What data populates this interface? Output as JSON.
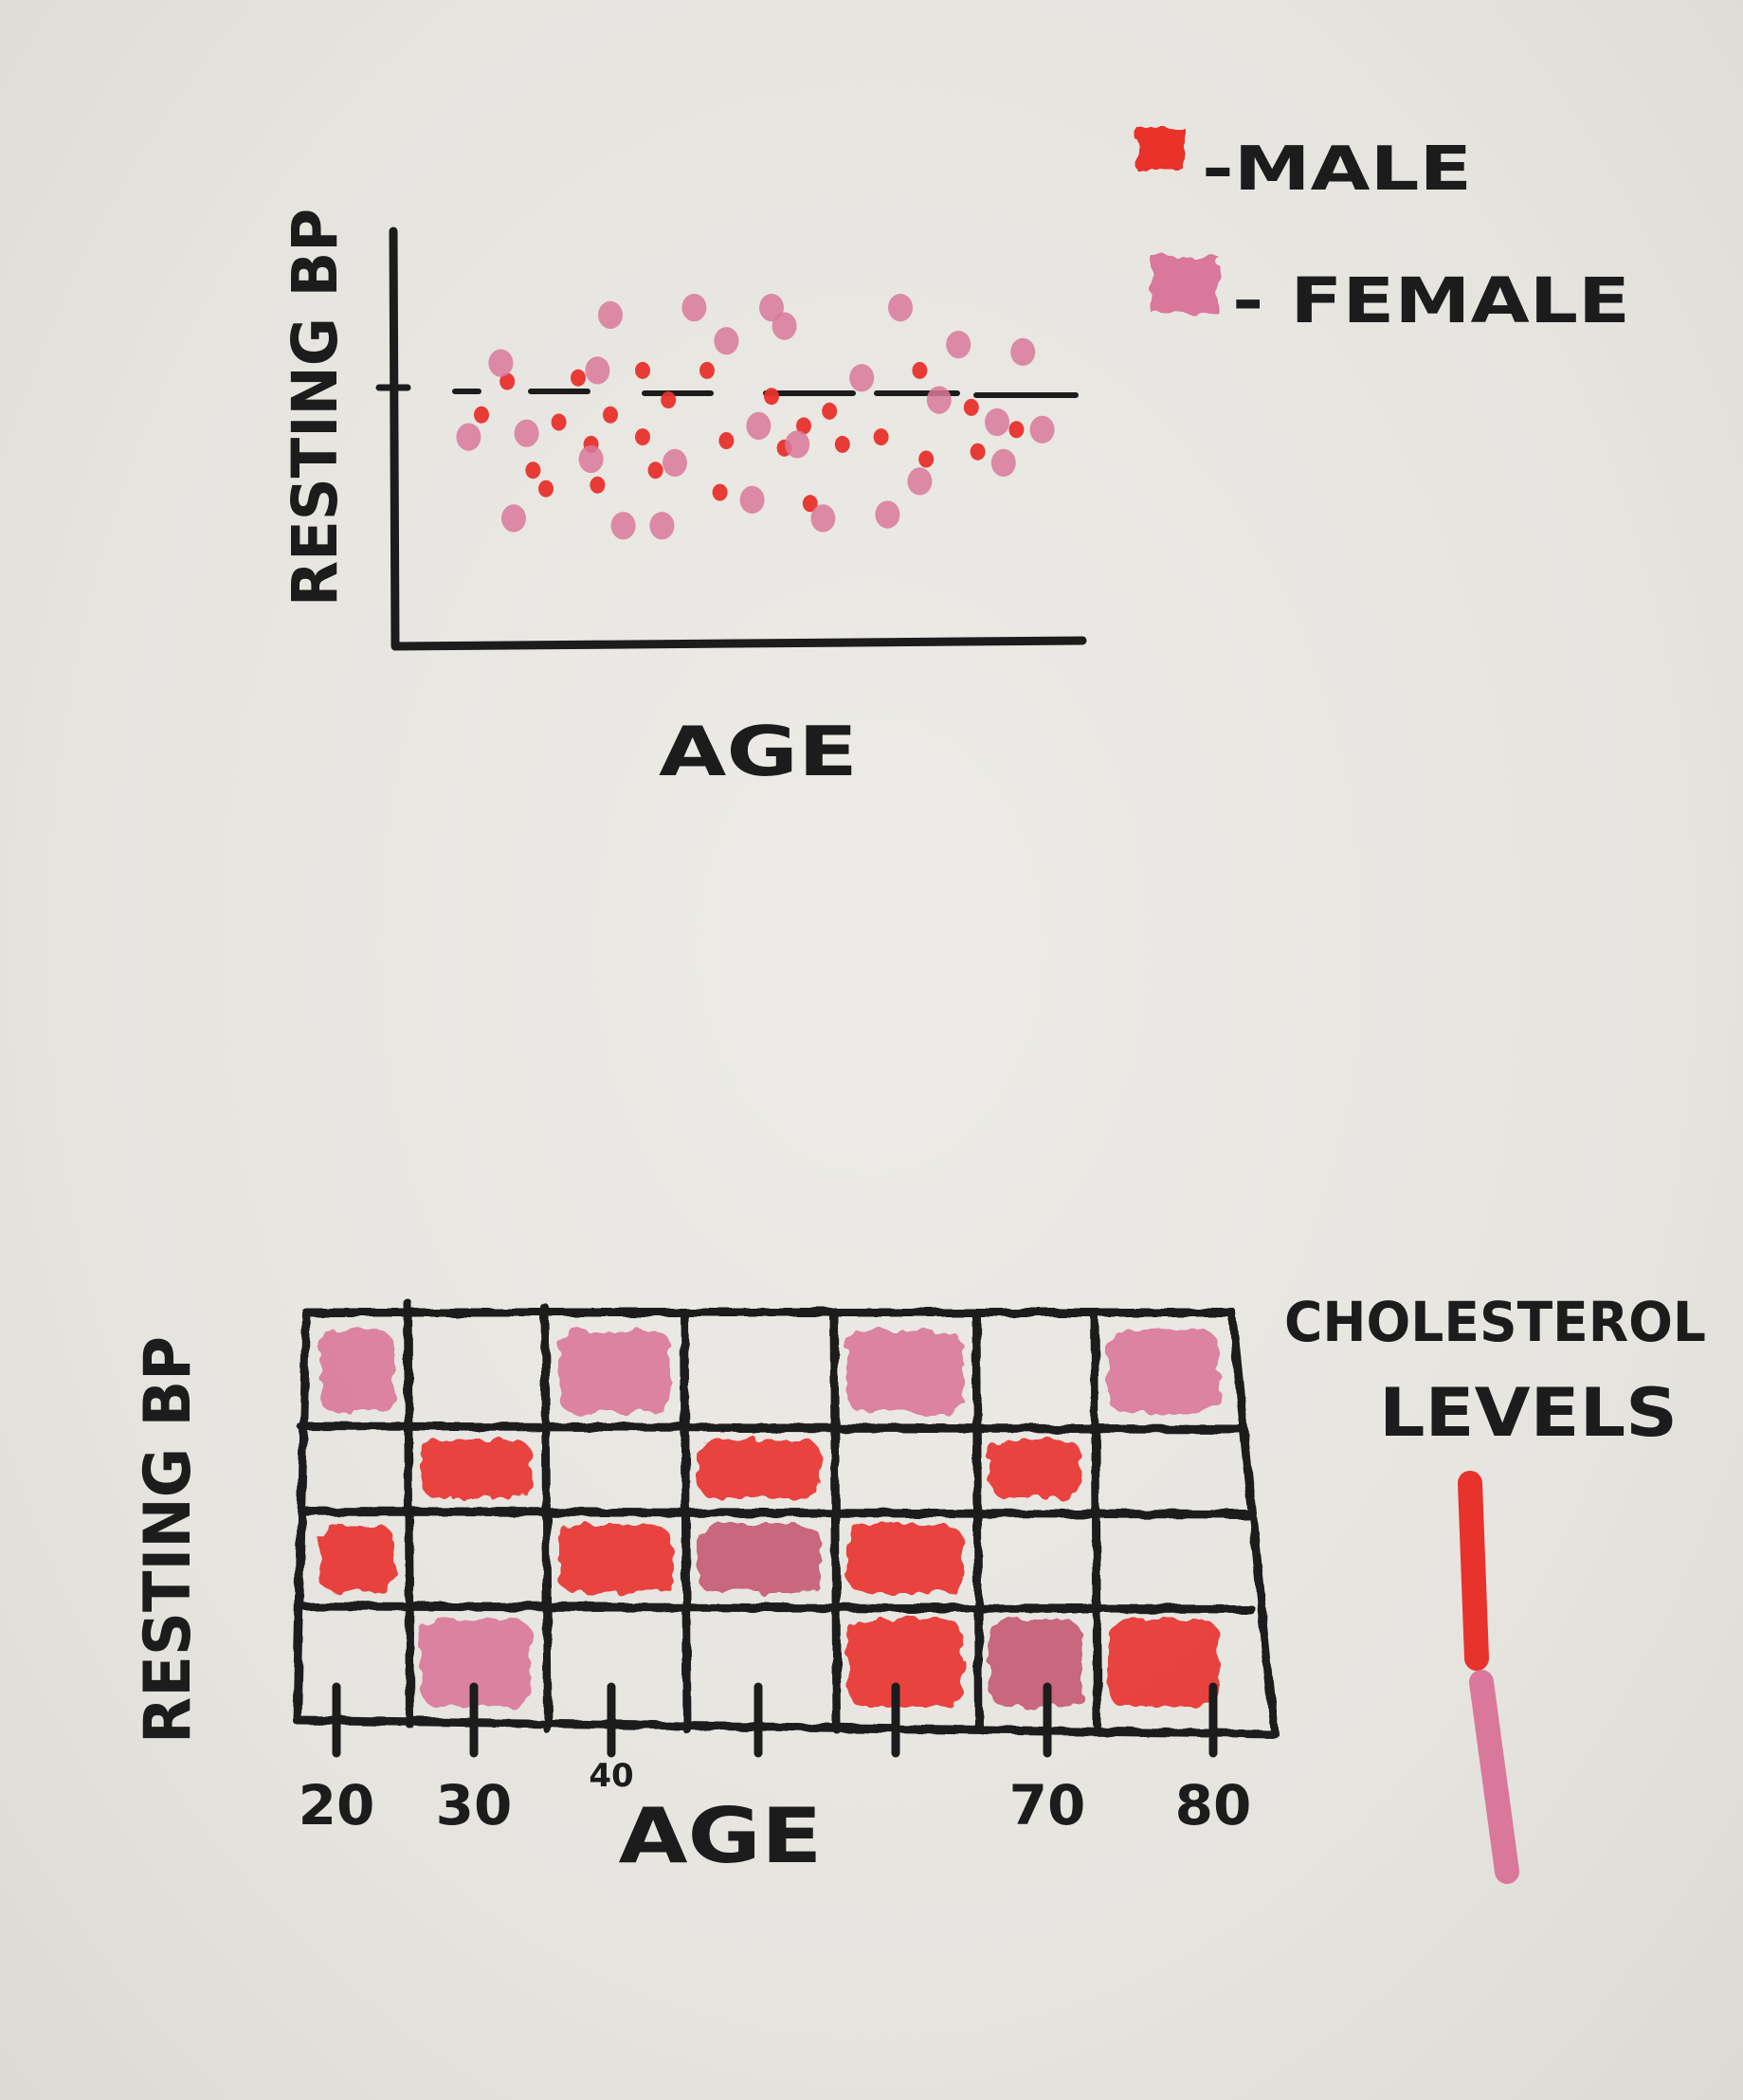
{
  "colors": {
    "ink": "#1c1c1c",
    "male": "#e8322c",
    "female": "#d9789a",
    "paper": "#e9e7e2"
  },
  "chart_data": [
    {
      "type": "scatter",
      "title": "",
      "xlabel": "AGE",
      "ylabel": "RESTING BP",
      "legend": {
        "placement": "top-right",
        "entries": [
          {
            "name": "-MALE",
            "color": "#e8322c"
          },
          {
            "name": "- FEMALE",
            "color": "#d9789a"
          }
        ]
      },
      "reference_line": {
        "y": 0.56,
        "style": "dashed"
      },
      "grid": false,
      "xlim": [
        0,
        1
      ],
      "ylim": [
        0,
        1
      ],
      "series": [
        {
          "name": "-MALE",
          "points": [
            [
              0.1,
              0.57
            ],
            [
              0.14,
              0.66
            ],
            [
              0.18,
              0.42
            ],
            [
              0.2,
              0.37
            ],
            [
              0.22,
              0.55
            ],
            [
              0.25,
              0.67
            ],
            [
              0.27,
              0.49
            ],
            [
              0.28,
              0.38
            ],
            [
              0.3,
              0.57
            ],
            [
              0.35,
              0.69
            ],
            [
              0.35,
              0.51
            ],
            [
              0.37,
              0.42
            ],
            [
              0.39,
              0.61
            ],
            [
              0.45,
              0.69
            ],
            [
              0.47,
              0.36
            ],
            [
              0.48,
              0.5
            ],
            [
              0.55,
              0.62
            ],
            [
              0.57,
              0.48
            ],
            [
              0.6,
              0.54
            ],
            [
              0.61,
              0.33
            ],
            [
              0.64,
              0.58
            ],
            [
              0.66,
              0.49
            ],
            [
              0.72,
              0.51
            ],
            [
              0.78,
              0.69
            ],
            [
              0.79,
              0.45
            ],
            [
              0.87,
              0.47
            ],
            [
              0.86,
              0.59
            ],
            [
              0.93,
              0.53
            ]
          ]
        },
        {
          "name": "- FEMALE",
          "points": [
            [
              0.08,
              0.51
            ],
            [
              0.13,
              0.71
            ],
            [
              0.15,
              0.29
            ],
            [
              0.17,
              0.52
            ],
            [
              0.27,
              0.45
            ],
            [
              0.28,
              0.69
            ],
            [
              0.3,
              0.84
            ],
            [
              0.32,
              0.27
            ],
            [
              0.38,
              0.27
            ],
            [
              0.4,
              0.44
            ],
            [
              0.43,
              0.86
            ],
            [
              0.48,
              0.77
            ],
            [
              0.52,
              0.34
            ],
            [
              0.53,
              0.54
            ],
            [
              0.55,
              0.86
            ],
            [
              0.57,
              0.81
            ],
            [
              0.59,
              0.49
            ],
            [
              0.63,
              0.29
            ],
            [
              0.69,
              0.67
            ],
            [
              0.73,
              0.3
            ],
            [
              0.75,
              0.86
            ],
            [
              0.78,
              0.39
            ],
            [
              0.81,
              0.61
            ],
            [
              0.84,
              0.76
            ],
            [
              0.9,
              0.55
            ],
            [
              0.91,
              0.44
            ],
            [
              0.94,
              0.74
            ],
            [
              0.97,
              0.53
            ]
          ]
        }
      ]
    },
    {
      "type": "heatmap",
      "title": "",
      "xlabel": "AGE",
      "ylabel": "RESTING BP",
      "x_ticks": [
        "20",
        "30",
        "40",
        "",
        "",
        "70",
        "80"
      ],
      "legend": {
        "title_line1": "CHOLESTEROL",
        "title_line2": "LEVELS",
        "placement": "right",
        "scale": [
          "#e8322c",
          "#d9789a"
        ]
      },
      "rows": 4,
      "cols": 7,
      "cells": [
        [
          "female",
          "",
          "female",
          "",
          "female",
          "",
          "female"
        ],
        [
          "",
          "male",
          "",
          "male",
          "",
          "male",
          ""
        ],
        [
          "male",
          "",
          "male",
          "mixed",
          "male",
          "",
          ""
        ],
        [
          "",
          "female",
          "",
          "",
          "male",
          "mixed",
          "male"
        ]
      ]
    }
  ]
}
